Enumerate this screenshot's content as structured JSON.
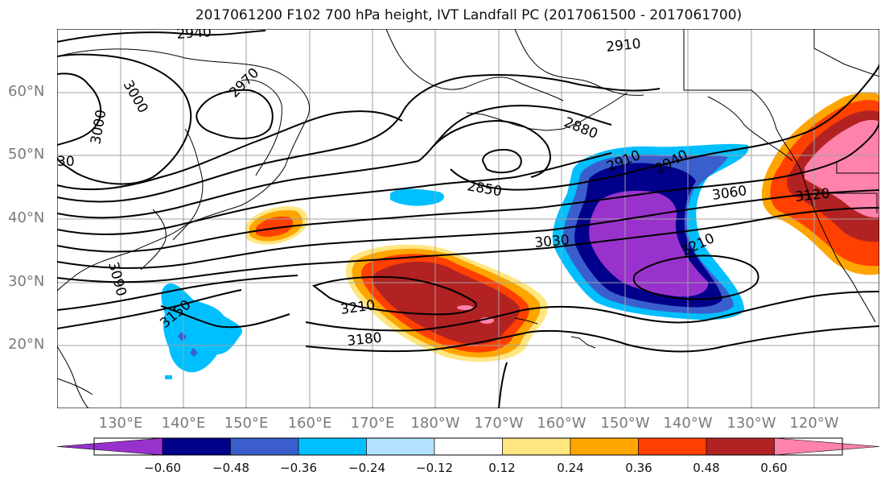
{
  "title": "2017061200 F102 700 hPa height, IVT Landfall PC (2017061500 - 2017061700)",
  "lat_labels": [
    "60°N",
    "50°N",
    "40°N",
    "30°N",
    "20°N"
  ],
  "lon_labels": [
    "130°E",
    "140°E",
    "150°E",
    "160°E",
    "170°E",
    "180°W",
    "170°W",
    "160°W",
    "150°W",
    "140°W",
    "130°W",
    "120°W"
  ],
  "contour_labels": [
    "2940",
    "2910",
    "2970",
    "3000",
    "3000",
    "30",
    "2880",
    "2910",
    "2940",
    "2850",
    "3060",
    "3120",
    "3030",
    "3210",
    "3090",
    "3150",
    "3210",
    "3180"
  ],
  "colorbar": {
    "ticks": [
      "−0.60",
      "−0.48",
      "−0.36",
      "−0.24",
      "−0.12",
      "0.12",
      "0.24",
      "0.36",
      "0.48",
      "0.60"
    ],
    "colors": [
      "#9932cc",
      "#00008b",
      "#3a5fcd",
      "#00bfff",
      "#b2e2ff",
      "#ffffff",
      "#ffe680",
      "#ffa500",
      "#ff4000",
      "#b22222",
      "#ff82ab"
    ]
  },
  "colors": {
    "grid": "#a0a0a0",
    "coast": "#000000",
    "contour": "#000000"
  }
}
